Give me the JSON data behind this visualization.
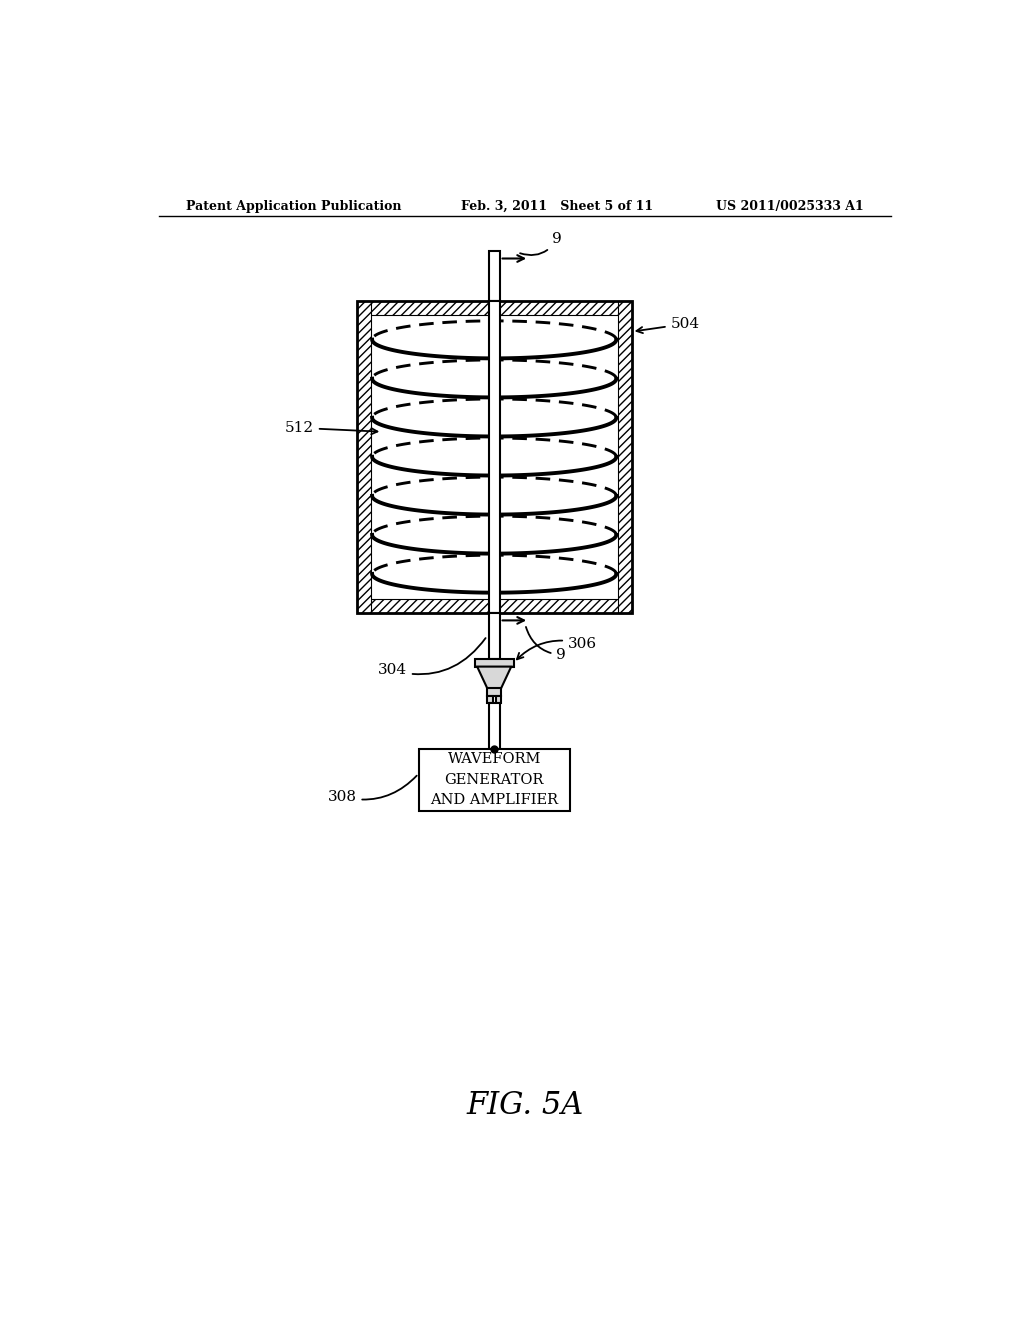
{
  "bg_color": "#ffffff",
  "header_left": "Patent Application Publication",
  "header_mid": "Feb. 3, 2011   Sheet 5 of 11",
  "header_right": "US 2011/0025333 A1",
  "fig_label": "FIG. 5A",
  "labels": {
    "9_top": "9",
    "504": "504",
    "512": "512",
    "304": "304",
    "9_mid": "9",
    "306": "306",
    "308": "308",
    "box_text": "WAVEFORM\nGENERATOR\nAND AMPLIFIER"
  }
}
